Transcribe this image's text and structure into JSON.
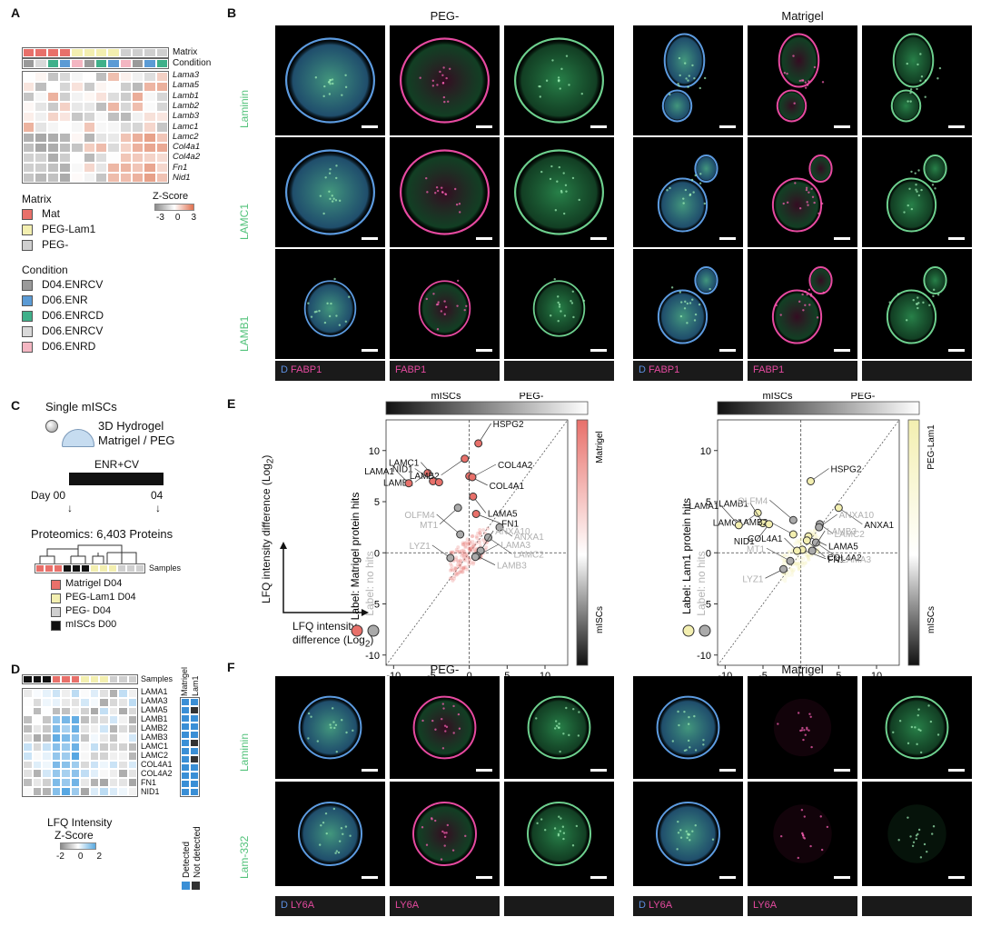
{
  "panels": {
    "A": "A",
    "B": "B",
    "C": "C",
    "D": "D",
    "E": "E",
    "F": "F"
  },
  "colors": {
    "mat": "#e8706a",
    "peglam1": "#f3efb0",
    "peg": "#cfcfcf",
    "mISC": "#111111",
    "laminin_green": "#52c27a",
    "fabp1_magenta": "#e64aa0",
    "dapi_blue": "#3f78c7",
    "c_D04ENRCV": "#9a9a9a",
    "c_D06ENR": "#5b9bd5",
    "c_D06ENRCD": "#3fb08a",
    "c_D06ENRCV": "#d9d9d9",
    "c_D06ENRD": "#f4b6c2"
  },
  "panelA": {
    "row_labels": {
      "matrix": "Matrix",
      "condition": "Condition"
    },
    "genes": [
      "Lama3",
      "Lama5",
      "Lamb1",
      "Lamb2",
      "Lamb3",
      "Lamc1",
      "Lamc2",
      "Col4a1",
      "Col4a2",
      "Fn1",
      "Nid1"
    ],
    "legend_matrix_title": "Matrix",
    "legend_matrix": [
      "Mat",
      "PEG-Lam1",
      "PEG-"
    ],
    "zscore_title": "Z-Score",
    "zscore_ticks": [
      "-3",
      "0",
      "3"
    ],
    "legend_condition_title": "Condition",
    "legend_condition": [
      "D04.ENRCV",
      "D06.ENR",
      "D06.ENRCD",
      "D06.ENRCV",
      "D06.ENRD"
    ]
  },
  "panelB": {
    "col_titles": [
      "PEG-",
      "Matrigel"
    ],
    "row_labels": [
      "Laminin",
      "LAMC1",
      "LAMB1"
    ],
    "strip_labels": [
      {
        "d": "D",
        "t": "FABP1"
      },
      {
        "d": "",
        "t": "FABP1"
      },
      {
        "d": "",
        "t": ""
      },
      {
        "d": "D",
        "t": "FABP1"
      },
      {
        "d": "",
        "t": "FABP1"
      },
      {
        "d": "",
        "t": ""
      }
    ]
  },
  "panelC": {
    "title1": "Single mISCs",
    "title2": "3D Hydrogel",
    "title3": "Matrigel / PEG",
    "medium": "ENR+CV",
    "day_label": "Day 00",
    "day_end": "04",
    "proteomics": "Proteomics: 6,403 Proteins",
    "samples_label": "Samples",
    "legend": [
      "Matrigel D04",
      "PEG-Lam1 D04",
      "PEG- D04",
      "mISCs D00"
    ]
  },
  "panelD": {
    "samples_label": "Samples",
    "col_heads": [
      "Matrigel",
      "Lam1"
    ],
    "proteins": [
      "LAMA1",
      "LAMA3",
      "LAMA5",
      "LAMB1",
      "LAMB2",
      "LAMB3",
      "LAMC1",
      "LAMC2",
      "COL4A1",
      "COL4A2",
      "FN1",
      "NID1"
    ],
    "lfq_title1": "LFQ Intensity",
    "lfq_title2": "Z-Score",
    "lfq_ticks": [
      "-2",
      "0",
      "2"
    ],
    "detected": "Detected",
    "not_detected": "Not detected"
  },
  "panelE": {
    "axis_y": "LFQ intensity difference (Log2)",
    "axis_x": "LFQ intensity difference (Log2)",
    "arrow_y": "LFQ intensity difference (Log",
    "arrow_x1": "LFQ intensity",
    "arrow_x2": "difference (Log",
    "left": {
      "xlabel": "PEG-",
      "top_left": "mISCs",
      "top_right": "PEG-",
      "side_top": "Matrigel",
      "side_bottom": "mISCs",
      "label_hits": "Label: Matrigel protein hits",
      "label_nohits": "Label: no hits"
    },
    "right": {
      "xlabel": "Matrigel",
      "top_left": "mISCs",
      "top_right": "PEG-",
      "side_top": "PEG-Lam1",
      "side_bottom": "mISCs",
      "label_hits": "Label: Lam1 protein hits",
      "label_nohits": "Label: no hits"
    }
  },
  "chart_data": [
    {
      "type": "scatter",
      "title": "",
      "xlabel": "PEG-",
      "ylabel": "LFQ intensity difference (Log2)",
      "xlim": [
        -11,
        13
      ],
      "ylim": [
        -11,
        13
      ],
      "xticks": [
        "-10",
        "-5",
        "0",
        "5",
        "10"
      ],
      "yticks": [
        "10",
        "5",
        "0",
        "-5",
        "-10"
      ],
      "points": [
        {
          "label": "LAMB1",
          "x": -5.5,
          "y": 7.8,
          "hit": true
        },
        {
          "label": "NID1",
          "x": -4.8,
          "y": 7.0,
          "hit": true
        },
        {
          "label": "LAMB2",
          "x": -0.6,
          "y": 9.2,
          "hit": true
        },
        {
          "label": "HSPG2",
          "x": 1.2,
          "y": 10.7,
          "hit": true
        },
        {
          "label": "COL4A1",
          "x": 0.0,
          "y": 7.5,
          "hit": true
        },
        {
          "label": "COL4A2",
          "x": 0.4,
          "y": 7.4,
          "hit": true
        },
        {
          "label": "LAMA5",
          "x": 0.5,
          "y": 5.5,
          "hit": true
        },
        {
          "label": "LAMC1",
          "x": -4.0,
          "y": 6.9,
          "hit": true
        },
        {
          "label": "FN1",
          "x": 0.9,
          "y": 3.8,
          "hit": true
        },
        {
          "label": "LAMA1",
          "x": -8.0,
          "y": 6.8,
          "hit": true
        },
        {
          "label": "MT1",
          "x": -1.5,
          "y": 4.4,
          "hit": false
        },
        {
          "label": "OLFM4",
          "x": -1.2,
          "y": 1.8,
          "hit": false
        },
        {
          "label": "ANXA1",
          "x": 4.0,
          "y": 2.5,
          "hit": false
        },
        {
          "label": "LYZ1",
          "x": -2.5,
          "y": -0.5,
          "hit": false
        },
        {
          "label": "LAMC2",
          "x": 2.5,
          "y": 1.5,
          "hit": false
        },
        {
          "label": "ANXA10",
          "x": 1.5,
          "y": 0.2,
          "hit": false
        },
        {
          "label": "LAMB3",
          "x": 1.0,
          "y": -0.3,
          "hit": false
        },
        {
          "label": "LAMA3",
          "x": 0.8,
          "y": -0.4,
          "hit": false
        }
      ]
    },
    {
      "type": "scatter",
      "title": "",
      "xlabel": "Matrigel",
      "ylabel": "LFQ intensity difference (Log2)",
      "xlim": [
        -11,
        13
      ],
      "ylim": [
        -11,
        13
      ],
      "xticks": [
        "-10",
        "-5",
        "0",
        "5",
        "10"
      ],
      "yticks": [
        "10",
        "5",
        "0",
        "-5",
        "-10"
      ],
      "points": [
        {
          "label": "LAMC1",
          "x": -5.7,
          "y": 3.9,
          "hit": true
        },
        {
          "label": "HSPG2",
          "x": 1.3,
          "y": 7.0,
          "hit": true
        },
        {
          "label": "ANXA1",
          "x": 5.0,
          "y": 4.4,
          "hit": true
        },
        {
          "label": "LAMB1",
          "x": -5.0,
          "y": 2.9,
          "hit": true
        },
        {
          "label": "LAMA5",
          "x": 1.0,
          "y": 1.6,
          "hit": true
        },
        {
          "label": "LAMB2",
          "x": -1.0,
          "y": 1.8,
          "hit": true
        },
        {
          "label": "NID1",
          "x": -4.2,
          "y": 2.8,
          "hit": true
        },
        {
          "label": "LAMA1",
          "x": -8.2,
          "y": 2.7,
          "hit": true
        },
        {
          "label": "FN1",
          "x": 0.2,
          "y": 0.3,
          "hit": true
        },
        {
          "label": "COL4A1",
          "x": -0.5,
          "y": 0.2,
          "hit": true
        },
        {
          "label": "COL4A2",
          "x": 0.8,
          "y": 1.2,
          "hit": true
        },
        {
          "label": "OLFM4",
          "x": -1.0,
          "y": 3.2,
          "hit": false
        },
        {
          "label": "LAMC2",
          "x": 2.5,
          "y": 2.8,
          "hit": false
        },
        {
          "label": "ANXA10",
          "x": 2.4,
          "y": 2.5,
          "hit": false
        },
        {
          "label": "LAMA3",
          "x": 2.0,
          "y": 1.0,
          "hit": false
        },
        {
          "label": "LAMB3",
          "x": 1.5,
          "y": 0.2,
          "hit": false
        },
        {
          "label": "LYZ1",
          "x": -2.3,
          "y": -1.6,
          "hit": false
        },
        {
          "label": "MT1",
          "x": -1.4,
          "y": -0.8,
          "hit": false
        }
      ]
    }
  ],
  "panelF": {
    "col_titles": [
      "PEG-",
      "Matrigel"
    ],
    "row_labels": [
      "Laminin",
      "Lam-332"
    ],
    "strip_labels": [
      {
        "d": "D",
        "t": "LY6A"
      },
      {
        "d": "",
        "t": "LY6A"
      },
      {
        "d": "",
        "t": ""
      },
      {
        "d": "D",
        "t": "LY6A"
      },
      {
        "d": "",
        "t": "LY6A"
      },
      {
        "d": "",
        "t": ""
      }
    ]
  }
}
